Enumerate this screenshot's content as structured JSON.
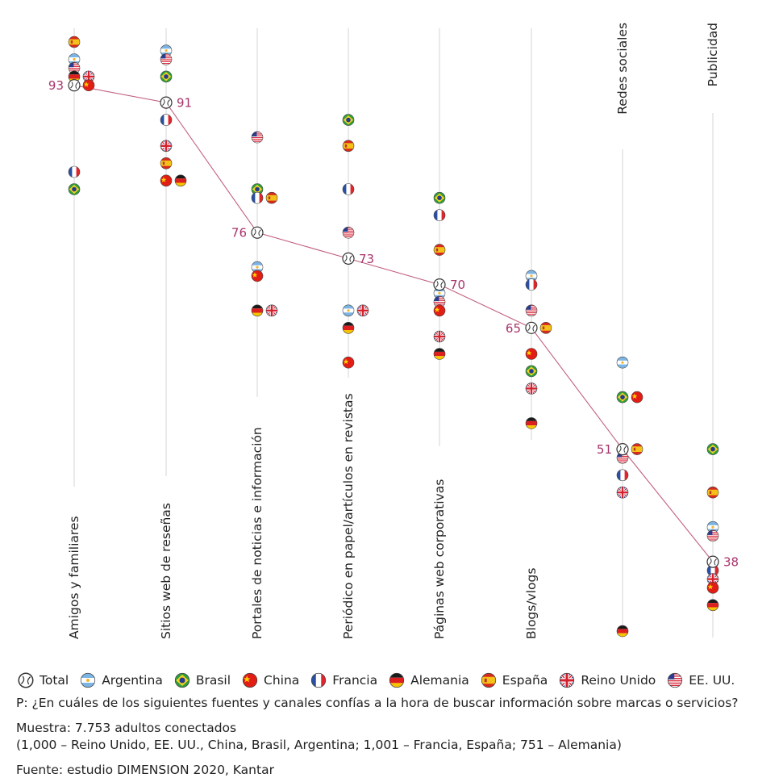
{
  "chart_data": {
    "type": "scatter",
    "categories": [
      "Amigos y familiares",
      "Sitios web de reseñas",
      "Portales de noticias e información",
      "Periódico en papel/artículos en revistas",
      "Páginas web corporativas",
      "Blogs/vlogs",
      "Redes sociales",
      "Publicidad"
    ],
    "total": [
      93,
      91,
      76,
      73,
      70,
      65,
      51,
      38
    ],
    "series": [
      {
        "name": "Argentina",
        "key": "argentina",
        "values": [
          96,
          97,
          72,
          67,
          69,
          71,
          61,
          42
        ]
      },
      {
        "name": "Brasil",
        "key": "brasil",
        "values": [
          81,
          94,
          81,
          89,
          80,
          60,
          57,
          51
        ]
      },
      {
        "name": "China",
        "key": "china",
        "values": [
          93,
          82,
          71,
          61,
          67,
          62,
          57,
          35
        ]
      },
      {
        "name": "Francia",
        "key": "francia",
        "values": [
          83,
          89,
          80,
          81,
          78,
          70,
          48,
          37
        ]
      },
      {
        "name": "Alemania",
        "key": "alemania",
        "values": [
          94,
          82,
          67,
          65,
          62,
          54,
          30,
          33
        ]
      },
      {
        "name": "España",
        "key": "espana",
        "values": [
          98,
          84,
          80,
          86,
          74,
          65,
          51,
          46
        ]
      },
      {
        "name": "Reino Unido",
        "key": "reino_unido",
        "values": [
          94,
          86,
          67,
          67,
          64,
          58,
          46,
          36
        ]
      },
      {
        "name": "EE. UU.",
        "key": "eeuu",
        "values": [
          95,
          96,
          87,
          76,
          68,
          67,
          50,
          41
        ]
      }
    ],
    "value_axis": {
      "min": 30,
      "max": 98
    }
  },
  "legend": [
    {
      "label": "Total",
      "key": "total"
    },
    {
      "label": "Argentina",
      "key": "argentina"
    },
    {
      "label": "Brasil",
      "key": "brasil"
    },
    {
      "label": "China",
      "key": "china"
    },
    {
      "label": "Francia",
      "key": "francia"
    },
    {
      "label": "Alemania",
      "key": "alemania"
    },
    {
      "label": "España",
      "key": "espana"
    },
    {
      "label": "Reino Unido",
      "key": "reino_unido"
    },
    {
      "label": "EE. UU.",
      "key": "eeuu"
    }
  ],
  "footnotes": {
    "question": "P: ¿En cuáles de los siguientes fuentes y canales confías a la hora de buscar información sobre marcas o servicios?",
    "sample": "Muestra: 7.753 adultos conectados",
    "sample_detail": "(1,000 – Reino Unido, EE. UU., China, Brasil, Argentina; 1,001 – Francia, España; 751 – Alemania)",
    "source": "Fuente: estudio DIMENSION 2020, Kantar"
  },
  "colors": {
    "total_line": "#c2607f",
    "total_label": "#a8336b",
    "axis": "#d6d6d6"
  }
}
